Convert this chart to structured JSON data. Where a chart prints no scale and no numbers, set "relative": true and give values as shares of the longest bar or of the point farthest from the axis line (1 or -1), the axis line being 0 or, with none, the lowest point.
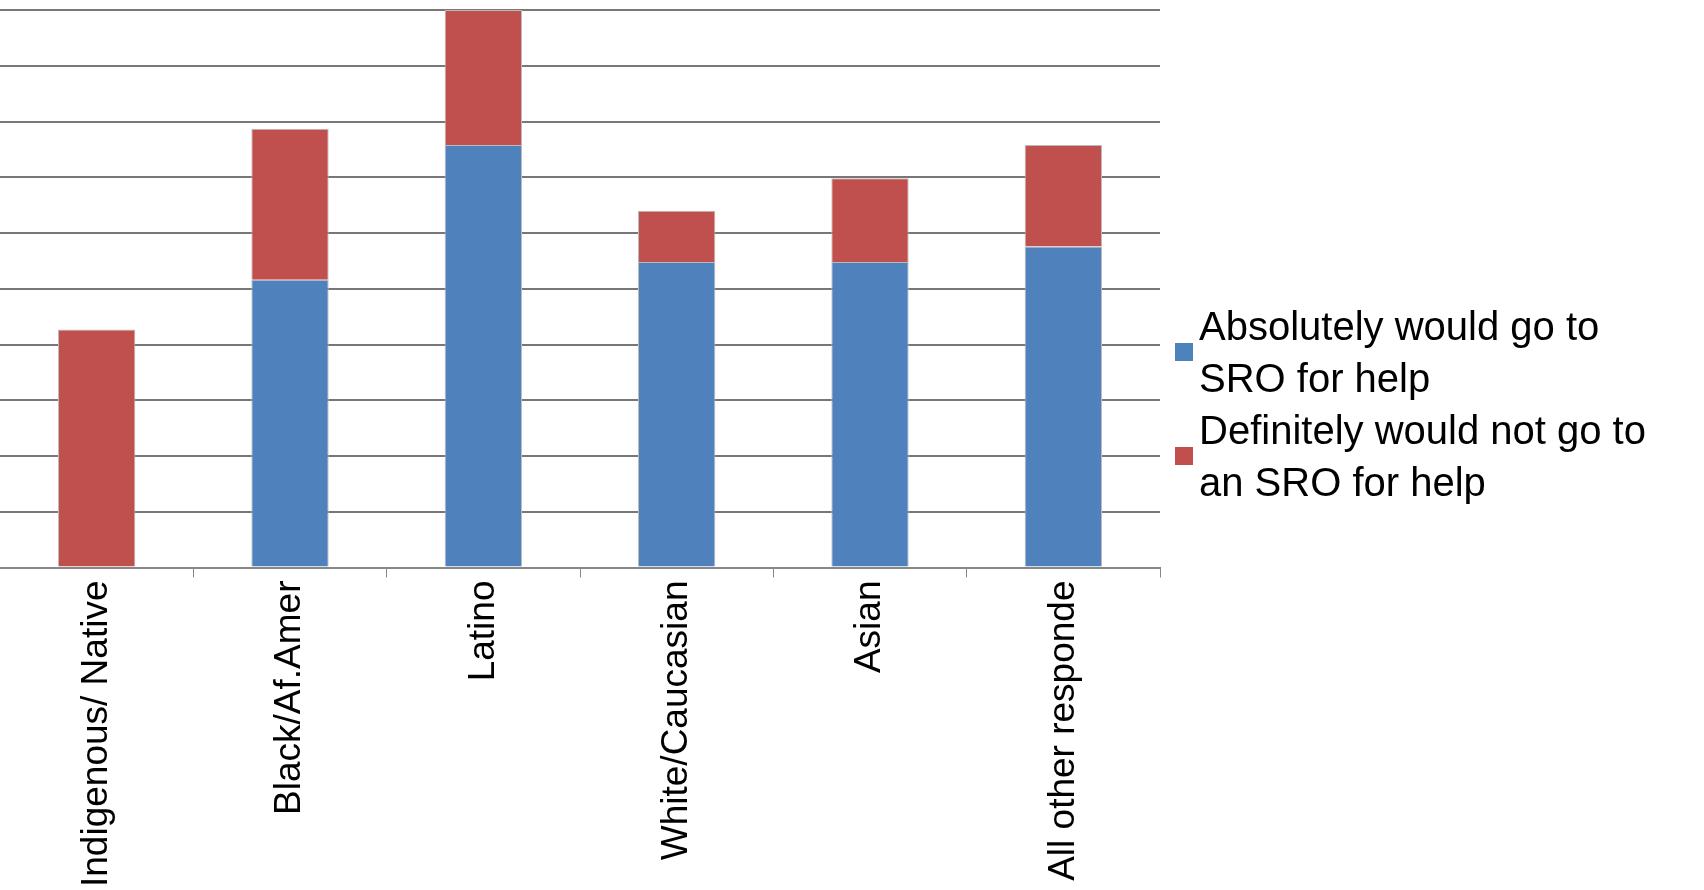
{
  "chart_data": {
    "type": "bar",
    "stacked": true,
    "relative": true,
    "grid": "y",
    "legend": "right",
    "categories": [
      "Indigenous/ Native",
      "Black/Af.Amer",
      "Latino",
      "White/Caucasian",
      "Asian",
      "All other responde"
    ],
    "series": [
      {
        "name": "Absolutely would go to SRO for help",
        "color": "#4f81bd",
        "values": [
          0,
          0.516,
          0.758,
          0.548,
          0.548,
          0.576
        ]
      },
      {
        "name": "Definitely would not go to an SRO for help",
        "color": "#c0504d",
        "values": [
          0.427,
          0.271,
          0.242,
          0.092,
          0.15,
          0.182
        ]
      }
    ]
  }
}
